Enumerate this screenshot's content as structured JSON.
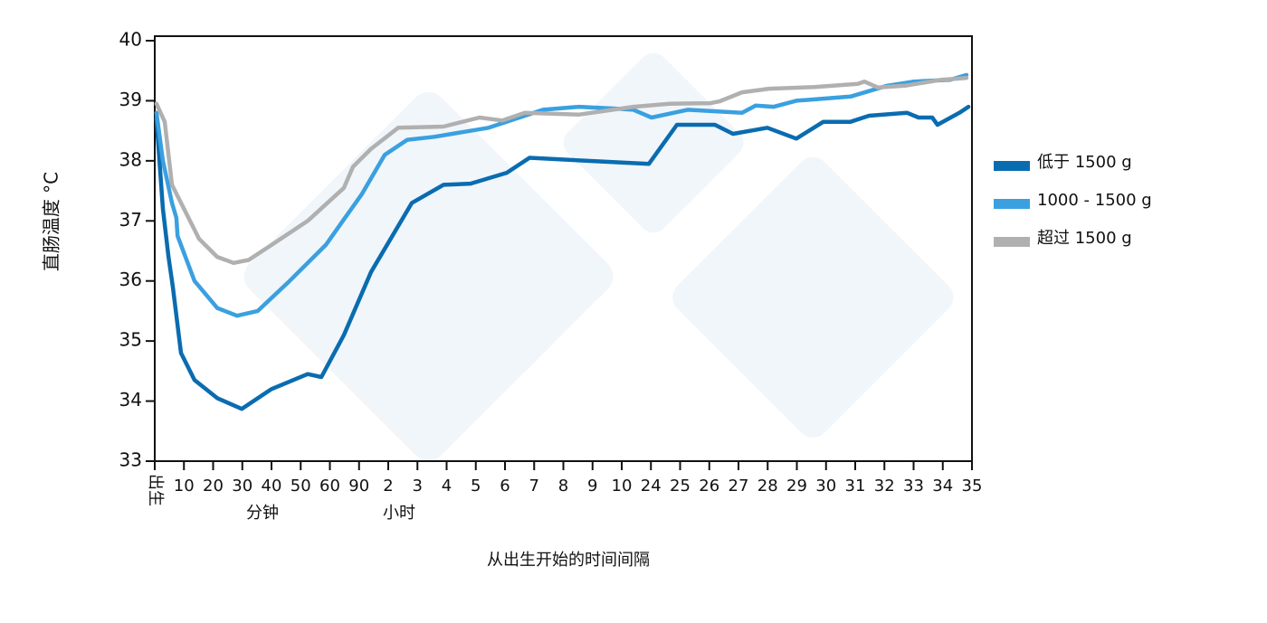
{
  "chart_data": {
    "type": "line",
    "y_label": "直肠温度 °C",
    "x_label": "从出生开始的时间间隔",
    "x_sublabels": [
      "分钟",
      "小时"
    ],
    "ylim": [
      33,
      40
    ],
    "yticks": [
      33,
      34,
      35,
      36,
      37,
      38,
      39,
      40
    ],
    "xlim": [
      0,
      28
    ],
    "xticks": [
      {
        "value": 0,
        "label": "出生"
      },
      {
        "value": 1,
        "label": "10"
      },
      {
        "value": 2,
        "label": "20"
      },
      {
        "value": 3,
        "label": "30"
      },
      {
        "value": 4,
        "label": "40"
      },
      {
        "value": 5,
        "label": "50"
      },
      {
        "value": 6,
        "label": "60"
      },
      {
        "value": 7,
        "label": "90"
      },
      {
        "value": 8,
        "label": "2"
      },
      {
        "value": 9,
        "label": "3"
      },
      {
        "value": 10,
        "label": "4"
      },
      {
        "value": 11,
        "label": "5"
      },
      {
        "value": 12,
        "label": "6"
      },
      {
        "value": 13,
        "label": "7"
      },
      {
        "value": 14,
        "label": "8"
      },
      {
        "value": 15,
        "label": "9"
      },
      {
        "value": 16,
        "label": "10"
      },
      {
        "value": 17,
        "label": "24"
      },
      {
        "value": 18,
        "label": "25"
      },
      {
        "value": 19,
        "label": "26"
      },
      {
        "value": 20,
        "label": "27"
      },
      {
        "value": 21,
        "label": "28"
      },
      {
        "value": 22,
        "label": "29"
      },
      {
        "value": 23,
        "label": "30"
      },
      {
        "value": 24,
        "label": "31"
      },
      {
        "value": 25,
        "label": "32"
      },
      {
        "value": 26,
        "label": "33"
      },
      {
        "value": 27,
        "label": "34"
      },
      {
        "value": 28,
        "label": "35"
      }
    ],
    "series": [
      {
        "name": "低于 1500 g",
        "color": "#0a6cb0",
        "x": [
          0.06,
          0.28,
          0.47,
          0.62,
          0.9,
          1.36,
          2.14,
          2.98,
          4.0,
          5.24,
          5.71,
          6.48,
          7.41,
          8.81,
          9.89,
          10.82,
          12.06,
          12.84,
          14.85,
          16.93,
          17.89,
          19.19,
          19.81,
          20.99,
          21.98,
          22.91,
          23.84,
          24.47,
          25.77,
          26.17,
          26.64,
          26.82,
          27.57,
          27.88
        ],
        "values": [
          38.7,
          37.2,
          36.4,
          35.9,
          34.8,
          34.35,
          34.05,
          33.87,
          34.2,
          34.45,
          34.4,
          35.1,
          36.15,
          37.3,
          37.6,
          37.62,
          37.8,
          38.05,
          38.0,
          37.95,
          38.6,
          38.6,
          38.45,
          38.55,
          38.37,
          38.65,
          38.65,
          38.75,
          38.8,
          38.72,
          38.72,
          38.6,
          38.8,
          38.9
        ]
      },
      {
        "name": "1000 - 1500 g",
        "color": "#3aa0e0",
        "x": [
          0.06,
          0.28,
          0.59,
          0.74,
          0.78,
          1.36,
          2.14,
          2.82,
          3.53,
          4.62,
          5.86,
          7.1,
          7.88,
          8.65,
          9.58,
          11.44,
          13.3,
          14.54,
          15.78,
          16.4,
          17.02,
          18.26,
          20.12,
          20.59,
          21.21,
          21.98,
          23.84,
          25.09,
          26.02,
          27.26,
          27.81
        ],
        "values": [
          38.8,
          38.0,
          37.3,
          37.05,
          36.75,
          36.0,
          35.55,
          35.42,
          35.5,
          36.0,
          36.6,
          37.45,
          38.1,
          38.35,
          38.4,
          38.55,
          38.85,
          38.9,
          38.87,
          38.85,
          38.72,
          38.85,
          38.8,
          38.92,
          38.9,
          39.0,
          39.07,
          39.25,
          39.32,
          39.35,
          39.43
        ]
      },
      {
        "name": "超过 1500 g",
        "color": "#b0b0b0",
        "x": [
          0.06,
          0.34,
          0.59,
          0.9,
          1.52,
          2.14,
          2.7,
          3.22,
          4.0,
          5.24,
          6.48,
          6.79,
          7.41,
          8.34,
          9.89,
          11.13,
          11.91,
          12.68,
          14.54,
          16.4,
          17.64,
          19.04,
          19.35,
          20.12,
          21.05,
          22.6,
          24.09,
          24.31,
          24.78,
          25.71,
          26.95,
          27.81
        ],
        "values": [
          38.95,
          38.65,
          37.6,
          37.3,
          36.7,
          36.4,
          36.3,
          36.35,
          36.6,
          37.0,
          37.55,
          37.9,
          38.2,
          38.55,
          38.57,
          38.72,
          38.67,
          38.8,
          38.77,
          38.9,
          38.95,
          38.96,
          38.99,
          39.14,
          39.2,
          39.23,
          39.28,
          39.32,
          39.22,
          39.25,
          39.35,
          39.38
        ]
      }
    ]
  }
}
